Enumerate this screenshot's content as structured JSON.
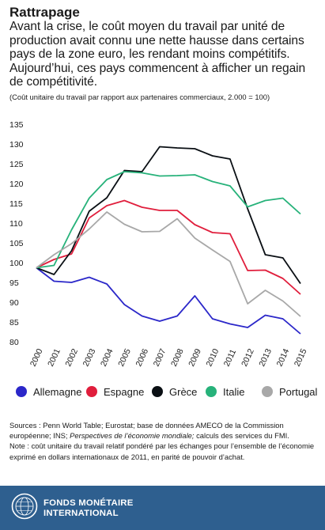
{
  "header": {
    "title": "Rattrapage",
    "subtitle": "Avant la crise, le coût moyen du travail par unité de production avait connu une nette hausse dans certains pays de la zone euro, les rendant moins compétitifs. Aujourd’hui, ces pays commencent à afficher un regain de compétitivité.",
    "units_note": "(Coût unitaire du travail par rapport aux partenaires commerciaux, 2.000 = 100)"
  },
  "chart_data": {
    "type": "line",
    "x": [
      "2000",
      "2001",
      "2002",
      "2003",
      "2004",
      "2005",
      "2006",
      "2007",
      "2008",
      "2009",
      "2010",
      "2011",
      "2012",
      "2013",
      "2014",
      "2015"
    ],
    "ylim": [
      80,
      135
    ],
    "yticks": [
      80,
      85,
      90,
      95,
      100,
      105,
      110,
      115,
      120,
      125,
      130,
      135
    ],
    "grid": false,
    "legend_position": "bottom",
    "series": [
      {
        "name": "Allemagne",
        "color": "#2b27c9",
        "values": [
          98.7,
          95.3,
          95.0,
          96.3,
          94.6,
          89.4,
          86.5,
          85.2,
          86.5,
          91.6,
          85.8,
          84.5,
          83.6,
          86.7,
          85.8,
          82.0
        ]
      },
      {
        "name": "Espagne",
        "color": "#e01e3c",
        "values": [
          98.7,
          100.8,
          102.2,
          111.3,
          114.4,
          115.7,
          114.0,
          113.2,
          113.2,
          109.6,
          107.6,
          107.3,
          98.0,
          98.1,
          96.0,
          92.0
        ]
      },
      {
        "name": "Grèce",
        "color": "#0a0f14",
        "values": [
          98.7,
          97.0,
          103.0,
          113.0,
          116.4,
          123.3,
          123.0,
          129.3,
          129.0,
          128.8,
          127.0,
          126.2,
          113.6,
          102.0,
          101.2,
          94.7
        ]
      },
      {
        "name": "Italie",
        "color": "#27b27a",
        "values": [
          98.7,
          99.3,
          108.3,
          116.3,
          121.0,
          123.0,
          122.7,
          121.9,
          122.0,
          122.2,
          120.5,
          119.4,
          114.1,
          115.7,
          116.3,
          112.3
        ]
      },
      {
        "name": "Portugal",
        "color": "#a8a8a8",
        "values": [
          98.7,
          102.0,
          104.8,
          108.5,
          112.8,
          109.7,
          107.8,
          107.9,
          111.1,
          106.2,
          103.2,
          100.3,
          89.6,
          93.0,
          90.3,
          86.4
        ]
      }
    ]
  },
  "sources": {
    "line1_prefix": "Sources : Penn World Table; Eurostat; base de données AMECO de la Commission européenne; INS; ",
    "line1_italic": "Perspectives de l’économie mondiale;",
    "line1_suffix": "  calculs des services du FMI.",
    "line2": "Note : coût unitaire du travail relatif pondéré par les échanges pour l’ensemble de l’économie exprimé en dollars internationaux de 2011, en parité de pouvoir d’achat."
  },
  "footer": {
    "org_line1": "FONDS MONÉTAIRE",
    "org_line2": "INTERNATIONAL",
    "seal_icon": "imf-seal-icon"
  }
}
